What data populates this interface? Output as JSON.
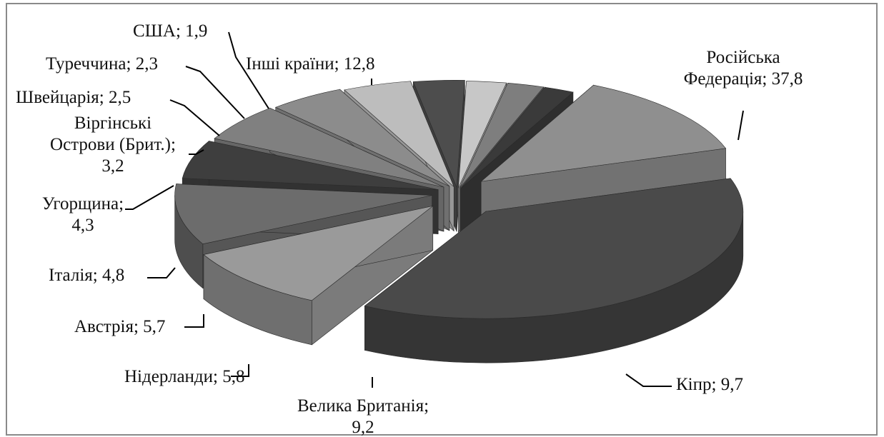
{
  "chart_data": {
    "type": "pie",
    "title": "",
    "style": "3d-exploded",
    "categories": [
      "Російська Федерація",
      "Кіпр",
      "Велика Британія",
      "Нідерланди",
      "Австрія",
      "Італія",
      "Угорщина",
      "Віргінські Острови (Брит.)",
      "Швейцарія",
      "Туреччина",
      "США",
      "Інші країни"
    ],
    "values": [
      37.8,
      9.7,
      9.2,
      5.8,
      5.7,
      4.8,
      4.3,
      3.2,
      2.5,
      2.3,
      1.9,
      12.8
    ],
    "colors": [
      "#4a4a4a",
      "#9a9a9a",
      "#6c6c6c",
      "#3e3e3e",
      "#808080",
      "#8c8c8c",
      "#bdbdbd",
      "#4d4d4d",
      "#c7c7c7",
      "#7e7e7e",
      "#3a3a3a",
      "#8f8f8f",
      "#d8d8d8"
    ],
    "labels": [
      {
        "lines": [
          "Російська",
          "Федерація; 37,8"
        ]
      },
      {
        "lines": [
          "Кіпр; 9,7"
        ]
      },
      {
        "lines": [
          "Велика Британія;",
          "9,2"
        ]
      },
      {
        "lines": [
          "Нідерланди; 5,8"
        ]
      },
      {
        "lines": [
          "Австрія; 5,7"
        ]
      },
      {
        "lines": [
          "Італія; 4,8"
        ]
      },
      {
        "lines": [
          "Угорщина;",
          "4,3"
        ]
      },
      {
        "lines": [
          "Віргінські",
          "Острови (Брит.);",
          "3,2"
        ]
      },
      {
        "lines": [
          "Швейцарія; 2,5"
        ]
      },
      {
        "lines": [
          "Туреччина; 2,3"
        ]
      },
      {
        "lines": [
          "США; 1,9"
        ]
      },
      {
        "lines": [
          "Інші країни; 12,8"
        ]
      }
    ]
  }
}
